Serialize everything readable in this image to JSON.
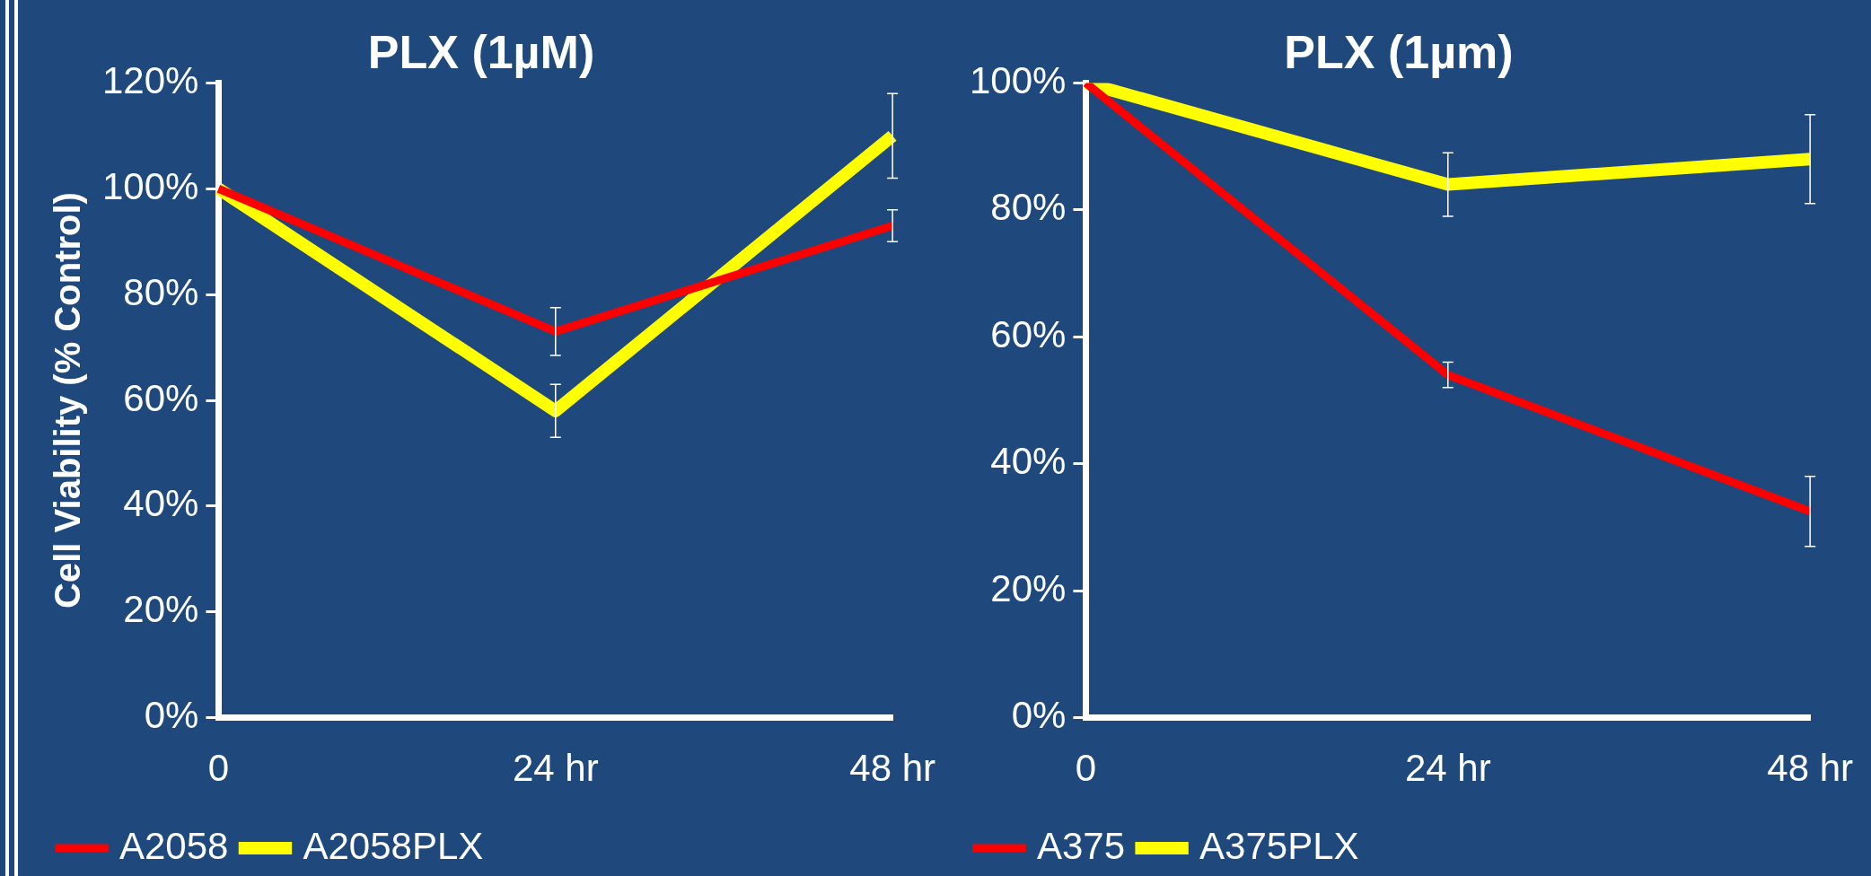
{
  "chart_data": [
    {
      "type": "line",
      "title": "PLX (1µM)",
      "ylabel": "Cell Viability (% Control)",
      "categories": [
        "0",
        "24 hr",
        "48 hr"
      ],
      "ylim": [
        0,
        120
      ],
      "yticks": [
        {
          "value": 0,
          "label": "0%"
        },
        {
          "value": 20,
          "label": "20%"
        },
        {
          "value": 40,
          "label": "40%"
        },
        {
          "value": 60,
          "label": "60%"
        },
        {
          "value": 80,
          "label": "80%"
        },
        {
          "value": 100,
          "label": "100%"
        },
        {
          "value": 120,
          "label": "120%"
        }
      ],
      "grid": false,
      "legend": "bottom",
      "marker": "none",
      "line_style": "solid",
      "series": [
        {
          "name": "A2058",
          "color": "#ff0000",
          "values": [
            100,
            73,
            93
          ],
          "errors": [
            null,
            4.5,
            3
          ]
        },
        {
          "name": "A2058PLX",
          "color": "#ffff00",
          "values": [
            100,
            58,
            110
          ],
          "errors": [
            null,
            5,
            8
          ]
        }
      ]
    },
    {
      "type": "line",
      "title": "PLX (1µm)",
      "categories": [
        "0",
        "24 hr",
        "48 hr"
      ],
      "ylim": [
        0,
        100
      ],
      "yticks": [
        {
          "value": 0,
          "label": "0%"
        },
        {
          "value": 20,
          "label": "20%"
        },
        {
          "value": 40,
          "label": "40%"
        },
        {
          "value": 60,
          "label": "60%"
        },
        {
          "value": 80,
          "label": "80%"
        },
        {
          "value": 100,
          "label": "100%"
        }
      ],
      "grid": false,
      "legend": "bottom",
      "marker": "none",
      "line_style": "solid",
      "series": [
        {
          "name": "A375",
          "color": "#ff0000",
          "values": [
            100,
            54,
            32.5
          ],
          "errors": [
            null,
            2,
            5.5
          ]
        },
        {
          "name": "A375PLX",
          "color": "#ffff00",
          "values": [
            100,
            84,
            88
          ],
          "errors": [
            null,
            5,
            7
          ]
        }
      ]
    }
  ]
}
